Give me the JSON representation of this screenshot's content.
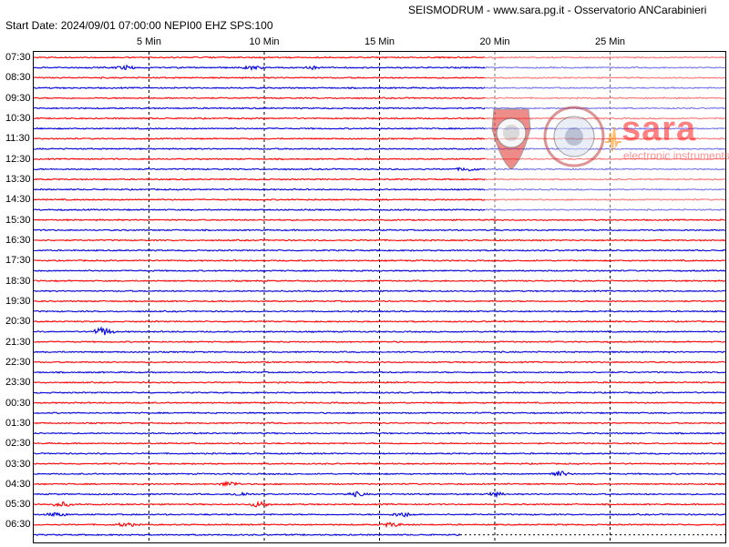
{
  "header": {
    "title": "SEISMODRUM - www.sara.pg.it - Osservatorio ANCarabinieri",
    "start_info": "Start Date: 2024/09/01 07:00:00 NEPI00 EHZ  SPS:100"
  },
  "watermark": {
    "brand": "sara",
    "subtitle": "electronic instruments"
  },
  "colors": {
    "red_trace": "#ff0000",
    "blue_trace": "#0000dd",
    "grid": "#000000"
  },
  "chart_data": {
    "type": "line",
    "title": "",
    "xlabel": "",
    "ylabel": "",
    "x_ticks": [
      "5 Min",
      "10 Min",
      "15 Min",
      "20 Min",
      "25 Min"
    ],
    "x_tick_values": [
      5,
      10,
      15,
      20,
      25
    ],
    "xlim": [
      0,
      30
    ],
    "grid": true,
    "row_labels": [
      "07:30",
      "08:30",
      "09:30",
      "10:30",
      "11:30",
      "12:30",
      "13:30",
      "14:30",
      "15:30",
      "16:30",
      "17:30",
      "18:30",
      "19:30",
      "20:30",
      "21:30",
      "22:30",
      "23:30",
      "00:30",
      "01:30",
      "02:30",
      "03:30",
      "04:30",
      "05:30",
      "06:30"
    ],
    "traces_per_hour": 2,
    "trace_count": 48,
    "last_trace_end_minute": 18.5,
    "events": [
      {
        "trace": 1,
        "minute": 4.0,
        "amplitude": 2.0
      },
      {
        "trace": 1,
        "minute": 9.5,
        "amplitude": 1.8
      },
      {
        "trace": 1,
        "minute": 12.0,
        "amplitude": 1.6
      },
      {
        "trace": 11,
        "minute": 18.8,
        "amplitude": 2.0
      },
      {
        "trace": 27,
        "minute": 3.0,
        "amplitude": 4.5
      },
      {
        "trace": 41,
        "minute": 22.8,
        "amplitude": 3.0
      },
      {
        "trace": 42,
        "minute": 8.5,
        "amplitude": 2.5
      },
      {
        "trace": 43,
        "minute": 9.0,
        "amplitude": 2.0
      },
      {
        "trace": 43,
        "minute": 14.0,
        "amplitude": 2.2
      },
      {
        "trace": 43,
        "minute": 20.0,
        "amplitude": 2.0
      },
      {
        "trace": 44,
        "minute": 1.2,
        "amplitude": 2.5
      },
      {
        "trace": 44,
        "minute": 9.8,
        "amplitude": 3.0
      },
      {
        "trace": 45,
        "minute": 1.0,
        "amplitude": 2.0
      },
      {
        "trace": 45,
        "minute": 16.0,
        "amplitude": 2.5
      },
      {
        "trace": 46,
        "minute": 4.0,
        "amplitude": 2.0
      },
      {
        "trace": 46,
        "minute": 15.5,
        "amplitude": 2.2
      }
    ]
  }
}
